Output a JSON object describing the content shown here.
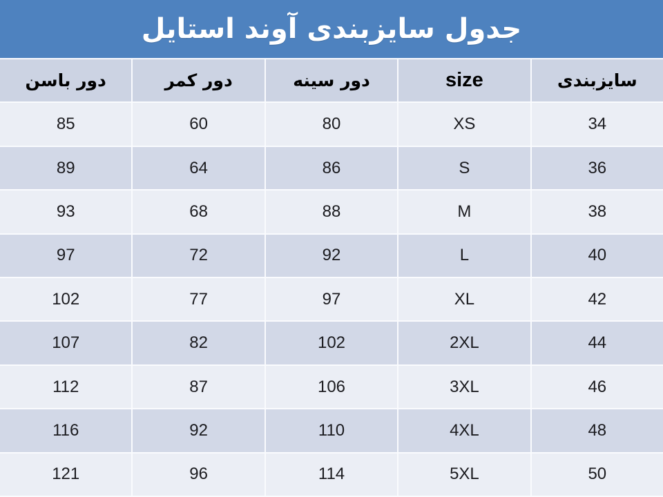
{
  "title": "جدول سایزبندی آوند استایل",
  "chart_data": {
    "type": "table",
    "title": "جدول سایزبندی آوند استایل",
    "direction": "rtl",
    "headers": [
      "سایزبندی",
      "size",
      "دور سینه",
      "دور کمر",
      "دور باسن"
    ],
    "rows": [
      [
        "34",
        "XS",
        "80",
        "60",
        "85"
      ],
      [
        "36",
        "S",
        "86",
        "64",
        "89"
      ],
      [
        "38",
        "M",
        "88",
        "68",
        "93"
      ],
      [
        "40",
        "L",
        "92",
        "72",
        "97"
      ],
      [
        "42",
        "XL",
        "97",
        "77",
        "102"
      ],
      [
        "44",
        "2XL",
        "102",
        "82",
        "107"
      ],
      [
        "46",
        "3XL",
        "106",
        "87",
        "112"
      ],
      [
        "48",
        "4XL",
        "110",
        "92",
        "116"
      ],
      [
        "50",
        "5XL",
        "114",
        "96",
        "121"
      ]
    ]
  },
  "colors": {
    "banner_bg": "#4e82bf",
    "header_row_bg": "#ccd3e3",
    "row_odd_bg": "#ebeef5",
    "row_even_bg": "#d2d8e7",
    "separator": "#fafbfe",
    "title_text": "#ffffff",
    "header_text": "#000000",
    "cell_text": "#1b1b1f"
  }
}
